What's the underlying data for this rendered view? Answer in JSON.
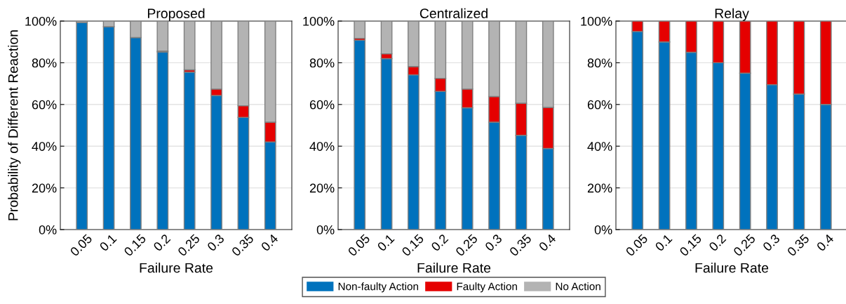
{
  "chart_data": [
    {
      "type": "bar",
      "stacked": true,
      "title": "Proposed",
      "xlabel": "Failure Rate",
      "ylabel": "Probability of Different Reaction",
      "categories": [
        "0.05",
        "0.1",
        "0.15",
        "0.2",
        "0.25",
        "0.3",
        "0.35",
        "0.4"
      ],
      "ylim": [
        0,
        100
      ],
      "yticks": [
        {
          "value": 0,
          "label": "0%"
        },
        {
          "value": 20,
          "label": "20%"
        },
        {
          "value": 40,
          "label": "40%"
        },
        {
          "value": 60,
          "label": "60%"
        },
        {
          "value": 80,
          "label": "80%"
        },
        {
          "value": 100,
          "label": "100%"
        }
      ],
      "grid": "y",
      "series": [
        {
          "color": "#0072bd",
          "values": [
            99.3,
            97.3,
            92.1,
            85.2,
            75.5,
            64.3,
            53.8,
            42.0
          ]
        },
        {
          "color": "#e50000",
          "values": [
            0,
            0,
            0,
            0.4,
            1.1,
            3.1,
            5.6,
            9.5
          ]
        },
        {
          "color": "#b3b3b3",
          "values": [
            0.7,
            2.7,
            7.9,
            14.4,
            23.4,
            32.6,
            40.6,
            48.5
          ]
        }
      ]
    },
    {
      "type": "bar",
      "stacked": true,
      "title": "Centralized",
      "xlabel": "Failure Rate",
      "categories": [
        "0.05",
        "0.1",
        "0.15",
        "0.2",
        "0.25",
        "0.3",
        "0.35",
        "0.4"
      ],
      "ylim": [
        0,
        100
      ],
      "yticks": [
        {
          "value": 0,
          "label": "0%"
        },
        {
          "value": 20,
          "label": "20%"
        },
        {
          "value": 40,
          "label": "40%"
        },
        {
          "value": 60,
          "label": "60%"
        },
        {
          "value": 80,
          "label": "80%"
        },
        {
          "value": 100,
          "label": "100%"
        }
      ],
      "grid": "y",
      "legend": "bottom",
      "series": [
        {
          "name": "Non-faulty Action",
          "color": "#0072bd",
          "values": [
            90.8,
            82.0,
            74.2,
            66.3,
            58.4,
            51.5,
            45.2,
            38.9
          ]
        },
        {
          "name": "Faulty Action",
          "color": "#e50000",
          "values": [
            0.9,
            2.3,
            4.0,
            6.2,
            9.0,
            12.3,
            15.4,
            19.7
          ]
        },
        {
          "name": "No Action",
          "color": "#b3b3b3",
          "values": [
            8.3,
            15.7,
            21.8,
            27.5,
            32.6,
            36.2,
            39.4,
            41.4
          ]
        }
      ]
    },
    {
      "type": "bar",
      "stacked": true,
      "title": "Relay",
      "xlabel": "Failure Rate",
      "categories": [
        "0.05",
        "0.1",
        "0.15",
        "0.2",
        "0.25",
        "0.3",
        "0.35",
        "0.4"
      ],
      "ylim": [
        0,
        100
      ],
      "yticks": [
        {
          "value": 0,
          "label": "0%"
        },
        {
          "value": 20,
          "label": "20%"
        },
        {
          "value": 40,
          "label": "40%"
        },
        {
          "value": 60,
          "label": "60%"
        },
        {
          "value": 80,
          "label": "80%"
        },
        {
          "value": 100,
          "label": "100%"
        }
      ],
      "grid": "y",
      "series": [
        {
          "color": "#0072bd",
          "values": [
            95,
            90,
            85,
            80,
            75,
            69.5,
            65,
            60
          ]
        },
        {
          "color": "#e50000",
          "values": [
            5,
            10,
            15,
            20,
            25,
            30.5,
            35,
            40
          ]
        }
      ]
    }
  ]
}
